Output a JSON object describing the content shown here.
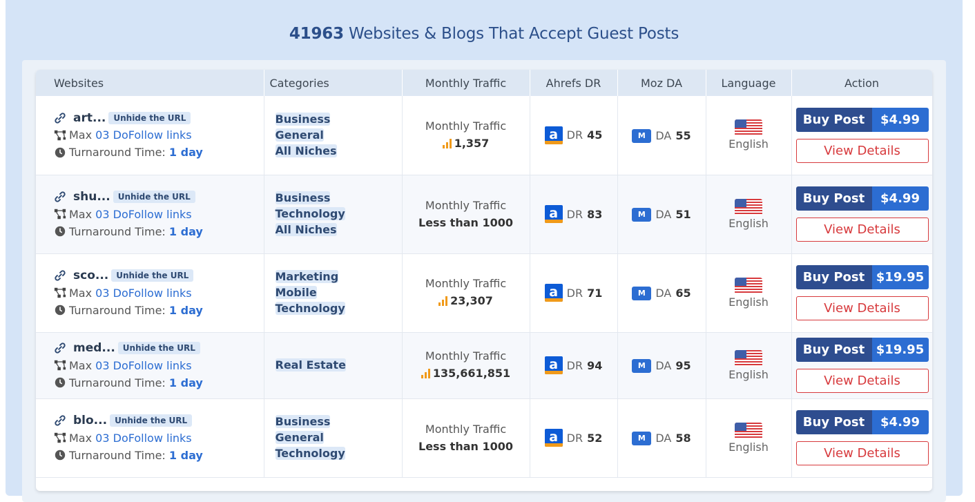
{
  "header": {
    "count": "41963",
    "title": "Websites & Blogs That Accept Guest Posts"
  },
  "columns": [
    "Websites",
    "Categories",
    "Monthly Traffic",
    "Ahrefs DR",
    "Moz DA",
    "Language",
    "Action"
  ],
  "colors": {
    "primary": "#2e4d8f",
    "accent": "#2c6dd2",
    "danger": "#d7393c",
    "tag_bg": "#dce8f7"
  },
  "rows": [
    {
      "name": "art...",
      "unhide": "Unhide the URL",
      "max_prefix": "Max",
      "links": "03 DoFollow links",
      "turnaround_label": "Turnaround Time:",
      "turnaround": "1 day",
      "categories": [
        "Business",
        "General",
        "All Niches"
      ],
      "traffic_label": "Monthly Traffic",
      "traffic": "1,357",
      "traffic_icon": true,
      "dr_label": "DR",
      "dr": "45",
      "da_label": "DA",
      "da": "55",
      "moz_badge": "M",
      "ahrefs_badge": "a",
      "language": "English",
      "buy_label": "Buy Post",
      "price": "$4.99",
      "details_label": "View Details"
    },
    {
      "name": "shu...",
      "unhide": "Unhide the URL",
      "max_prefix": "Max",
      "links": "03 DoFollow links",
      "turnaround_label": "Turnaround Time:",
      "turnaround": "1 day",
      "categories": [
        "Business",
        "Technology",
        "All Niches"
      ],
      "traffic_label": "Monthly Traffic",
      "traffic": "Less than 1000",
      "traffic_icon": false,
      "dr_label": "DR",
      "dr": "83",
      "da_label": "DA",
      "da": "51",
      "moz_badge": "M",
      "ahrefs_badge": "a",
      "language": "English",
      "buy_label": "Buy Post",
      "price": "$4.99",
      "details_label": "View Details"
    },
    {
      "name": "sco...",
      "unhide": "Unhide the URL",
      "max_prefix": "Max",
      "links": "03 DoFollow links",
      "turnaround_label": "Turnaround Time:",
      "turnaround": "1 day",
      "categories": [
        "Marketing",
        "Mobile",
        "Technology"
      ],
      "traffic_label": "Monthly Traffic",
      "traffic": "23,307",
      "traffic_icon": true,
      "dr_label": "DR",
      "dr": "71",
      "da_label": "DA",
      "da": "65",
      "moz_badge": "M",
      "ahrefs_badge": "a",
      "language": "English",
      "buy_label": "Buy Post",
      "price": "$19.95",
      "details_label": "View Details"
    },
    {
      "name": "med...",
      "unhide": "Unhide the URL",
      "max_prefix": "Max",
      "links": "03 DoFollow links",
      "turnaround_label": "Turnaround Time:",
      "turnaround": "1 day",
      "categories": [
        "Real Estate"
      ],
      "traffic_label": "Monthly Traffic",
      "traffic": "135,661,851",
      "traffic_icon": true,
      "dr_label": "DR",
      "dr": "94",
      "da_label": "DA",
      "da": "95",
      "moz_badge": "M",
      "ahrefs_badge": "a",
      "language": "English",
      "buy_label": "Buy Post",
      "price": "$19.95",
      "details_label": "View Details"
    },
    {
      "name": "blo...",
      "unhide": "Unhide the URL",
      "max_prefix": "Max",
      "links": "03 DoFollow links",
      "turnaround_label": "Turnaround Time:",
      "turnaround": "1 day",
      "categories": [
        "Business",
        "General",
        "Technology"
      ],
      "traffic_label": "Monthly Traffic",
      "traffic": "Less than 1000",
      "traffic_icon": false,
      "dr_label": "DR",
      "dr": "52",
      "da_label": "DA",
      "da": "58",
      "moz_badge": "M",
      "ahrefs_badge": "a",
      "language": "English",
      "buy_label": "Buy Post",
      "price": "$4.99",
      "details_label": "View Details"
    }
  ]
}
